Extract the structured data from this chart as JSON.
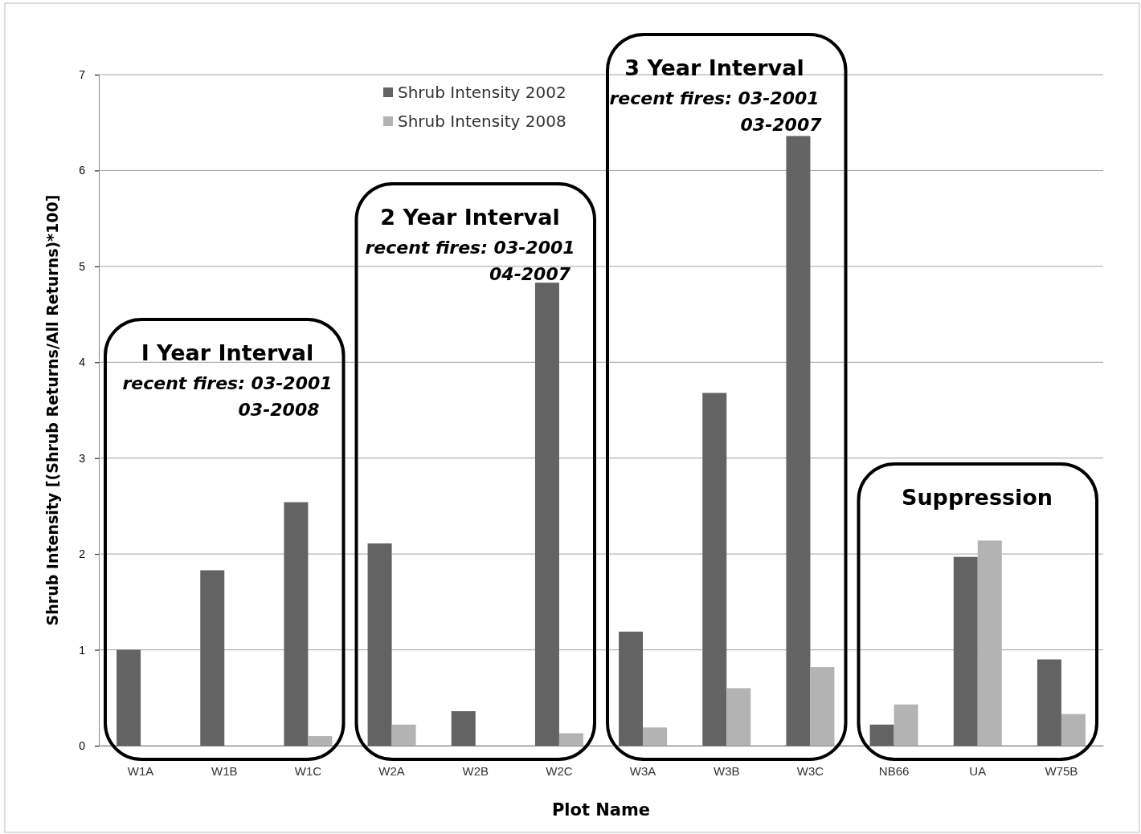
{
  "chart_data": {
    "type": "bar",
    "xlabel": "Plot Name",
    "ylabel": "Shrub Intensity [(Shrub  Returns/All Returns)*100]",
    "categories": [
      "W1A",
      "W1B",
      "W1C",
      "W2A",
      "W2B",
      "W2C",
      "W3A",
      "W3B",
      "W3C",
      "NB66",
      "UA",
      "W75B"
    ],
    "series": [
      {
        "name": "Shrub Intensity 2002",
        "color": "#636363",
        "values": [
          1.0,
          1.83,
          2.54,
          2.11,
          0.36,
          4.83,
          1.19,
          3.68,
          6.36,
          0.22,
          1.97,
          0.9
        ]
      },
      {
        "name": "Shrub Intensity 2008",
        "color": "#b3b3b3",
        "values": [
          0,
          0,
          0.1,
          0.22,
          0,
          0.13,
          0.19,
          0.6,
          0.82,
          0.43,
          2.14,
          0.33
        ]
      }
    ],
    "ylim": [
      0,
      7
    ],
    "yticks": [
      0,
      1,
      2,
      3,
      4,
      5,
      6,
      7
    ],
    "grid": "y",
    "legend": "top",
    "annotations": [
      "I Year Interval",
      "recent fires: 03-2001",
      "03-2008",
      "2 Year Interval",
      "recent fires: 03-2001",
      "04-2007",
      "3 Year Interval",
      "recent fires: 03-2001",
      "03-2007",
      "Suppression"
    ]
  }
}
